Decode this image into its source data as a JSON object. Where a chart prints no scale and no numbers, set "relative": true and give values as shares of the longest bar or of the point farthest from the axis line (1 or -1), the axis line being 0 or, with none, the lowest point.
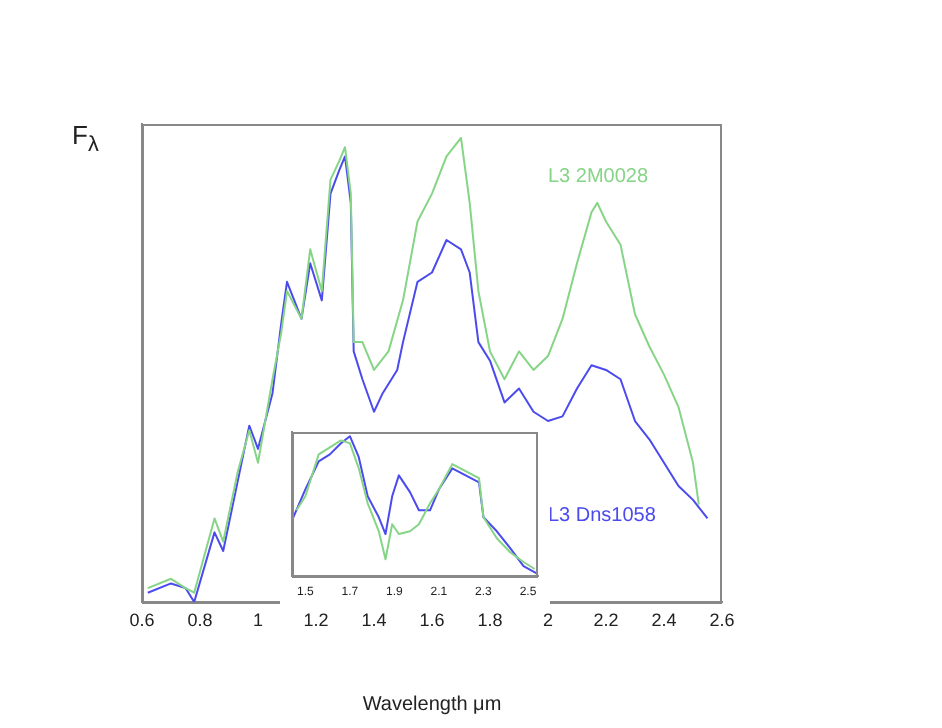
{
  "chart_data": [
    {
      "type": "line",
      "relative": true,
      "ylabel": "F$_{λ}$",
      "xlabel": "Wavelength μm",
      "xlim": [
        0.6,
        2.6
      ],
      "xticks": [
        0.6,
        0.8,
        1,
        1.2,
        1.4,
        1.6,
        1.8,
        2,
        2.2,
        2.4,
        2.6
      ],
      "grid": false,
      "legend": false,
      "marker": "none",
      "series": [
        {
          "name": "L3 2M0028",
          "color": "#86d486",
          "x": [
            0.62,
            0.7,
            0.75,
            0.78,
            0.85,
            0.88,
            0.93,
            0.97,
            1.0,
            1.05,
            1.08,
            1.1,
            1.15,
            1.18,
            1.22,
            1.25,
            1.28,
            1.3,
            1.32,
            1.33,
            1.36,
            1.4,
            1.45,
            1.5,
            1.55,
            1.6,
            1.65,
            1.7,
            1.73,
            1.76,
            1.8,
            1.85,
            1.9,
            1.95,
            2.0,
            2.05,
            2.1,
            2.15,
            2.17,
            2.2,
            2.25,
            2.3,
            2.35,
            2.4,
            2.45,
            2.5,
            2.52
          ],
          "values": [
            0.03,
            0.05,
            0.03,
            0.02,
            0.18,
            0.13,
            0.28,
            0.37,
            0.3,
            0.48,
            0.58,
            0.67,
            0.61,
            0.76,
            0.67,
            0.91,
            0.95,
            0.98,
            0.88,
            0.56,
            0.56,
            0.5,
            0.54,
            0.65,
            0.82,
            0.88,
            0.96,
            1.0,
            0.86,
            0.67,
            0.54,
            0.48,
            0.54,
            0.5,
            0.53,
            0.61,
            0.73,
            0.84,
            0.86,
            0.82,
            0.77,
            0.62,
            0.55,
            0.49,
            0.42,
            0.3,
            0.21
          ]
        },
        {
          "name": "L3 Dns1058",
          "color": "#4a4aee",
          "x": [
            0.62,
            0.7,
            0.75,
            0.78,
            0.85,
            0.88,
            0.93,
            0.97,
            1.0,
            1.05,
            1.08,
            1.1,
            1.15,
            1.18,
            1.22,
            1.25,
            1.28,
            1.3,
            1.32,
            1.33,
            1.36,
            1.4,
            1.43,
            1.48,
            1.5,
            1.55,
            1.6,
            1.65,
            1.7,
            1.73,
            1.76,
            1.8,
            1.85,
            1.9,
            1.95,
            2.0,
            2.05,
            2.1,
            2.15,
            2.2,
            2.25,
            2.3,
            2.35,
            2.4,
            2.45,
            2.5,
            2.55
          ],
          "values": [
            0.02,
            0.04,
            0.03,
            0.0,
            0.15,
            0.11,
            0.26,
            0.38,
            0.33,
            0.45,
            0.6,
            0.69,
            0.61,
            0.73,
            0.65,
            0.88,
            0.93,
            0.96,
            0.86,
            0.54,
            0.48,
            0.41,
            0.45,
            0.5,
            0.56,
            0.69,
            0.71,
            0.78,
            0.76,
            0.71,
            0.56,
            0.52,
            0.43,
            0.46,
            0.41,
            0.39,
            0.4,
            0.46,
            0.51,
            0.5,
            0.48,
            0.39,
            0.35,
            0.3,
            0.25,
            0.22,
            0.18
          ]
        }
      ]
    },
    {
      "type": "line",
      "relative": true,
      "xlim": [
        1.44,
        2.545
      ],
      "xticks": [
        1.5,
        1.7,
        1.9,
        2.1,
        2.3,
        2.5
      ],
      "grid": false,
      "legend": false,
      "marker": "none",
      "series": [
        {
          "color": "#86d486",
          "x": [
            1.46,
            1.5,
            1.56,
            1.61,
            1.66,
            1.7,
            1.74,
            1.78,
            1.83,
            1.86,
            1.89,
            1.92,
            1.97,
            2.01,
            2.06,
            2.1,
            2.16,
            2.22,
            2.28,
            2.3,
            2.36,
            2.42,
            2.48,
            2.53
          ],
          "values": [
            0.47,
            0.57,
            0.87,
            0.92,
            0.97,
            0.95,
            0.77,
            0.52,
            0.32,
            0.12,
            0.37,
            0.3,
            0.32,
            0.37,
            0.52,
            0.62,
            0.8,
            0.75,
            0.7,
            0.42,
            0.27,
            0.17,
            0.1,
            0.05
          ]
        },
        {
          "color": "#4a4aee",
          "x": [
            1.446,
            1.5,
            1.56,
            1.61,
            1.66,
            1.7,
            1.74,
            1.78,
            1.83,
            1.86,
            1.89,
            1.92,
            1.97,
            2.01,
            2.06,
            2.1,
            2.16,
            2.22,
            2.28,
            2.3,
            2.36,
            2.42,
            2.48,
            2.537
          ],
          "values": [
            0.42,
            0.62,
            0.82,
            0.87,
            0.95,
            1.0,
            0.85,
            0.57,
            0.42,
            0.3,
            0.57,
            0.72,
            0.6,
            0.47,
            0.47,
            0.62,
            0.77,
            0.72,
            0.67,
            0.42,
            0.32,
            0.2,
            0.07,
            0.02
          ]
        }
      ]
    }
  ]
}
